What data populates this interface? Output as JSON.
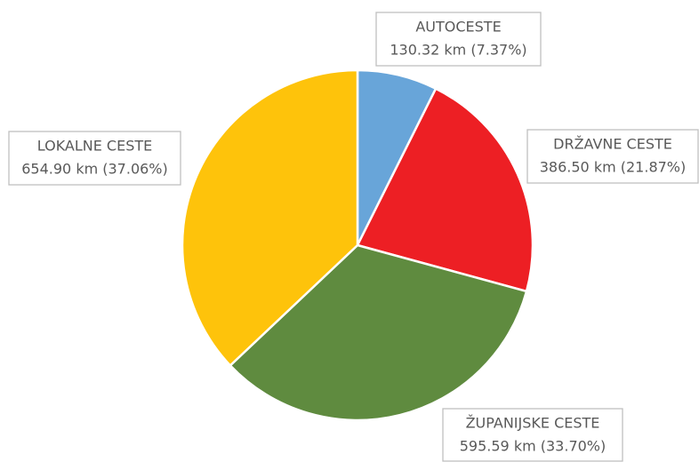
{
  "chart_data": {
    "type": "pie",
    "categories": [
      "AUTOCESTE",
      "DRŽAVNE CESTE",
      "ŽUPANIJSKE CESTE",
      "LOKALNE CESTE"
    ],
    "values": [
      130.32,
      386.5,
      595.59,
      654.9
    ],
    "value_labels": [
      "130.32 km (7.37%)",
      "386.50 km (21.87%)",
      "595.59 km (33.70%)",
      "654.90 km (37.06%)"
    ],
    "colors": [
      "#68a5d9",
      "#ed1f24",
      "#5f8b3f",
      "#fec30b"
    ]
  }
}
